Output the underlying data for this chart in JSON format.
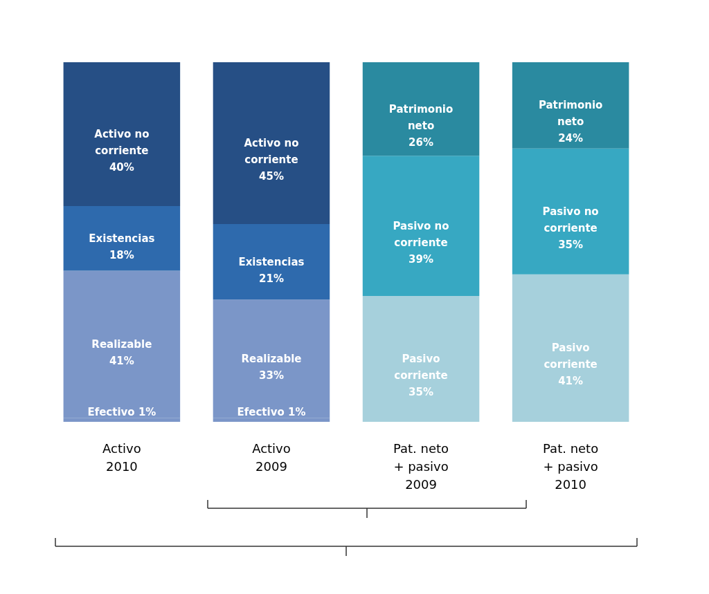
{
  "chart_data": {
    "type": "bar",
    "stacked": true,
    "categories": [
      "Activo\n2010",
      "Activo\n2009",
      "Pat. neto\n+ pasivo\n2009",
      "Pat. neto\n+ pasivo\n2010"
    ],
    "series": [
      {
        "name": "Efectivo",
        "color": "#7b96c8",
        "values": [
          1,
          1,
          null,
          null
        ],
        "value_labels": [
          "1%",
          "1%",
          null,
          null
        ]
      },
      {
        "name": "Realizable",
        "color": "#7b96c8",
        "values": [
          41,
          33,
          null,
          null
        ],
        "value_labels": [
          "41%",
          "33%",
          null,
          null
        ]
      },
      {
        "name": "Existencias",
        "color": "#2e6aad",
        "values": [
          18,
          21,
          null,
          null
        ],
        "value_labels": [
          "18%",
          "21%",
          null,
          null
        ]
      },
      {
        "name": "Activo no corriente",
        "color": "#264f85",
        "values": [
          40,
          45,
          null,
          null
        ],
        "value_labels": [
          "40%",
          "45%",
          null,
          null
        ]
      },
      {
        "name": "Pasivo corriente",
        "color": "#a6d0dc",
        "values": [
          null,
          null,
          35,
          41
        ],
        "value_labels": [
          null,
          null,
          "35%",
          "41%"
        ]
      },
      {
        "name": "Pasivo no corriente",
        "color": "#37a8c2",
        "values": [
          null,
          null,
          39,
          35
        ],
        "value_labels": [
          null,
          null,
          "39%",
          "35%"
        ]
      },
      {
        "name": "Patrimonio neto",
        "color": "#2a8aa0",
        "values": [
          null,
          null,
          26,
          24
        ],
        "value_labels": [
          null,
          null,
          "26%",
          "24%"
        ]
      }
    ]
  }
}
